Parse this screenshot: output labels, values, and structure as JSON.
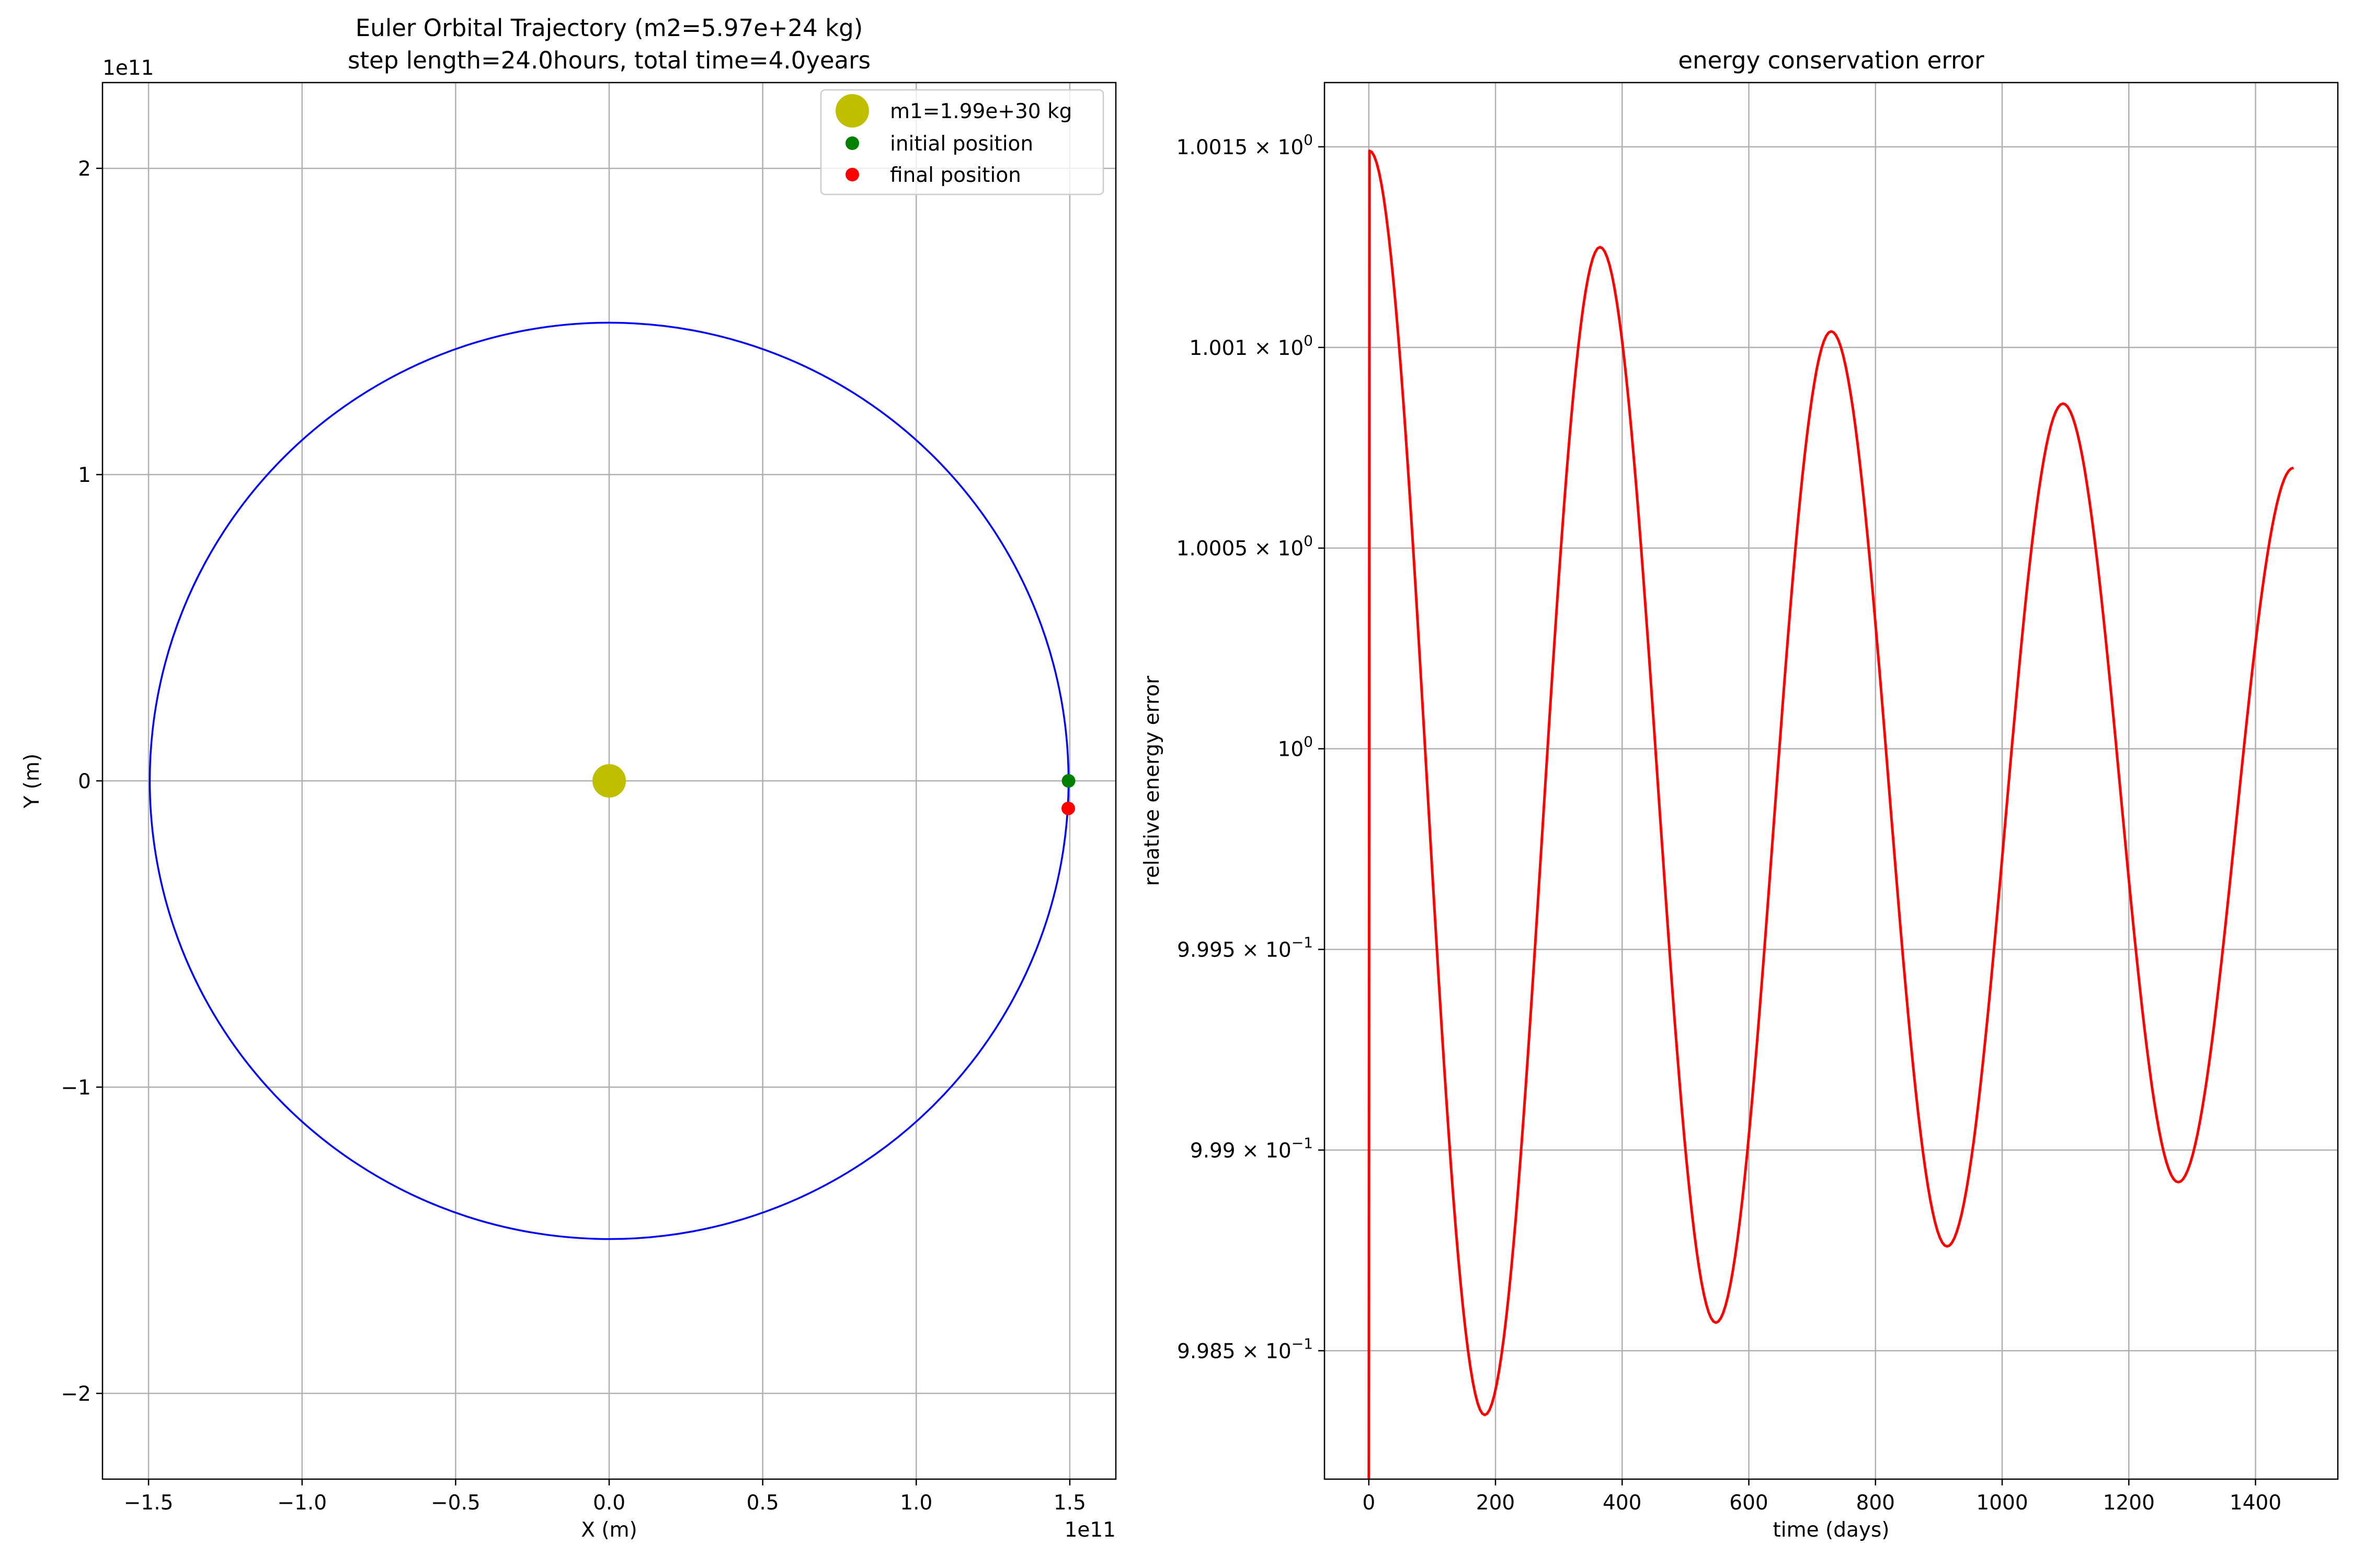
{
  "chart_data": [
    {
      "type": "line",
      "title": "Euler Orbital Trajectory (m2=5.97e+24 kg)\nstep length=24.0hours, total time=4.0years",
      "title_lines": [
        "Euler Orbital Trajectory (m2=5.97e+24 kg)",
        "step length=24.0hours, total time=4.0years"
      ],
      "xlabel": "X (m)",
      "ylabel": "Y (m)",
      "xlim": [
        -165000000000.0,
        165000000000.0
      ],
      "ylim": [
        -228000000000.0,
        228000000000.0
      ],
      "x_ticks": [
        -150000000000.0,
        -100000000000.0,
        -50000000000.0,
        0,
        50000000000.0,
        100000000000.0,
        150000000000.0
      ],
      "x_tick_labels": [
        "−1.5",
        "−1.0",
        "−0.5",
        "0.0",
        "0.5",
        "1.0",
        "1.5"
      ],
      "y_ticks": [
        -200000000000.0,
        -100000000000.0,
        0,
        100000000000.0,
        200000000000.0
      ],
      "y_tick_labels": [
        "−2",
        "−1",
        "0",
        "1",
        "2"
      ],
      "x_offset_label": "1e11",
      "y_offset_label": "1e11",
      "grid": true,
      "legend_position": "top-right",
      "orbit": {
        "radius": 149600000000.0,
        "color": "#0000ff"
      },
      "series": [
        {
          "name": "m1=1.99e+30 kg",
          "x": [
            0
          ],
          "y": [
            0
          ],
          "color": "#bfbf00",
          "marker": "large-circle"
        },
        {
          "name": "initial position",
          "x": [
            149600000000.0
          ],
          "y": [
            0
          ],
          "color": "#008000",
          "marker": "circle"
        },
        {
          "name": "final position",
          "x": [
            149500000000.0
          ],
          "y": [
            -9000000000.0
          ],
          "color": "#ff0000",
          "marker": "circle"
        }
      ]
    },
    {
      "type": "line",
      "title": "energy conservation error",
      "xlabel": "time (days)",
      "ylabel": "relative energy error",
      "xlim": [
        -70,
        1530
      ],
      "ylim": [
        0.99818,
        1.00166
      ],
      "x_ticks": [
        0,
        200,
        400,
        600,
        800,
        1000,
        1200,
        1400
      ],
      "x_tick_labels": [
        "0",
        "200",
        "400",
        "600",
        "800",
        "1000",
        "1200",
        "1400"
      ],
      "y_ticks": [
        0.9985,
        0.999,
        0.9995,
        1.0,
        1.0005,
        1.001,
        1.0015
      ],
      "y_tick_labels": [
        {
          "mant": "9.985",
          "exp": "−1"
        },
        {
          "mant": "9.99",
          "exp": "−1"
        },
        {
          "mant": "9.995",
          "exp": "−1"
        },
        {
          "mant": "",
          "exp": "0"
        },
        {
          "mant": "1.0005",
          "exp": "0"
        },
        {
          "mant": "1.001",
          "exp": "0"
        },
        {
          "mant": "1.0015",
          "exp": "0"
        }
      ],
      "grid": true,
      "series": [
        {
          "name": "",
          "color": "#ff0000",
          "start": {
            "x": 0,
            "y": 0.99818
          },
          "peaks": [
            {
              "x": 1,
              "y": 1.00149
            },
            {
              "x": 183,
              "y": 0.99834
            },
            {
              "x": 365,
              "y": 1.00125
            },
            {
              "x": 548,
              "y": 0.99857
            },
            {
              "x": 730,
              "y": 1.00104
            },
            {
              "x": 913,
              "y": 0.99876
            },
            {
              "x": 1096,
              "y": 1.00086
            },
            {
              "x": 1278,
              "y": 0.99892
            },
            {
              "x": 1460,
              "y": 1.0007
            }
          ]
        }
      ]
    }
  ]
}
